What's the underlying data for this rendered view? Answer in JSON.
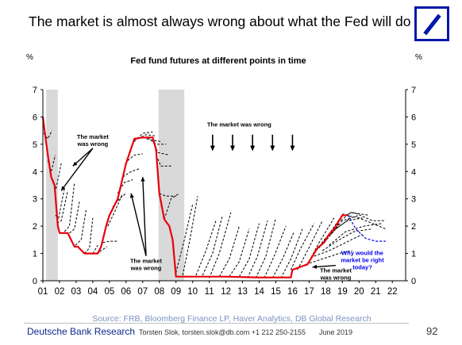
{
  "slide": {
    "title": "The market is almost always wrong about what the Fed will do",
    "footer_company": "Deutsche Bank Research",
    "footer_author": "Torsten Slok, torsten.slok@db.com  +1 212 250-2155",
    "footer_date": "June 2019",
    "page_number": "92",
    "brand_color": "#0018a8"
  },
  "chart_data": {
    "type": "line",
    "title": "Fed fund futures at different points in time",
    "y_unit_left": "%",
    "y_unit_right": "%",
    "ylim": [
      0,
      7
    ],
    "yticks": [
      "0",
      "1",
      "2",
      "3",
      "4",
      "5",
      "6",
      "7"
    ],
    "xlim": [
      2001,
      2022.8
    ],
    "xticks": [
      {
        "x": 2001,
        "label": "01"
      },
      {
        "x": 2002,
        "label": "02"
      },
      {
        "x": 2003,
        "label": "03"
      },
      {
        "x": 2004,
        "label": "04"
      },
      {
        "x": 2005,
        "label": "05"
      },
      {
        "x": 2006,
        "label": "06"
      },
      {
        "x": 2007,
        "label": "07"
      },
      {
        "x": 2008,
        "label": "08"
      },
      {
        "x": 2009,
        "label": "09"
      },
      {
        "x": 2010,
        "label": "10"
      },
      {
        "x": 2011,
        "label": "11"
      },
      {
        "x": 2012,
        "label": "12"
      },
      {
        "x": 2013,
        "label": "13"
      },
      {
        "x": 2014,
        "label": "14"
      },
      {
        "x": 2015,
        "label": "15"
      },
      {
        "x": 2016,
        "label": "16"
      },
      {
        "x": 2017,
        "label": "17"
      },
      {
        "x": 2018,
        "label": "18"
      },
      {
        "x": 2019,
        "label": "19"
      },
      {
        "x": 2020,
        "label": "20"
      },
      {
        "x": 2021,
        "label": "21"
      },
      {
        "x": 2022,
        "label": "22"
      }
    ],
    "source": "Source: FRB, Bloomberg Finance LP, Haver Analytics, DB Global Research",
    "recessions": [
      {
        "start": 2001.2,
        "end": 2001.9
      },
      {
        "start": 2007.95,
        "end": 2009.5
      }
    ],
    "colors": {
      "actual": "#e8000b",
      "futures": "#000000",
      "latest": "#0000ee",
      "recession": "#d9d9d9"
    },
    "actual": {
      "x": [
        2001.0,
        2001.1,
        2001.3,
        2001.5,
        2001.7,
        2001.9,
        2002.0,
        2002.5,
        2002.9,
        2003.1,
        2003.5,
        2003.9,
        2004.3,
        2004.5,
        2004.8,
        2005.0,
        2005.5,
        2006.0,
        2006.5,
        2007.0,
        2007.6,
        2007.8,
        2008.0,
        2008.3,
        2008.6,
        2008.8,
        2009.0,
        2010.0,
        2012.0,
        2014.0,
        2015.9,
        2016.0,
        2016.9,
        2017.3,
        2017.5,
        2017.9,
        2018.2,
        2018.5,
        2018.8,
        2019.0,
        2019.3
      ],
      "y": [
        6.0,
        5.5,
        4.6,
        3.8,
        3.5,
        2.0,
        1.75,
        1.75,
        1.25,
        1.25,
        1.0,
        1.0,
        1.0,
        1.25,
        2.0,
        2.4,
        3.0,
        4.3,
        5.2,
        5.25,
        5.25,
        4.8,
        3.2,
        2.25,
        2.0,
        1.5,
        0.15,
        0.15,
        0.15,
        0.12,
        0.12,
        0.4,
        0.6,
        1.0,
        1.2,
        1.4,
        1.7,
        1.9,
        2.2,
        2.4,
        2.4
      ]
    },
    "futures": [
      [
        [
          2001.05,
          5.4
        ],
        [
          2001.3,
          5.2
        ],
        [
          2001.55,
          5.5
        ]
      ],
      [
        [
          2001.3,
          4.4
        ],
        [
          2001.5,
          4.0
        ],
        [
          2001.75,
          4.6
        ]
      ],
      [
        [
          2001.6,
          3.7
        ],
        [
          2001.8,
          3.4
        ],
        [
          2002.1,
          4.3
        ]
      ],
      [
        [
          2001.75,
          2.4
        ],
        [
          2001.95,
          2.3
        ],
        [
          2002.3,
          3.4
        ]
      ],
      [
        [
          2001.85,
          2.1
        ],
        [
          2002.1,
          2.2
        ],
        [
          2002.5,
          3.3
        ]
      ],
      [
        [
          2002.3,
          1.8
        ],
        [
          2002.6,
          2.0
        ],
        [
          2002.9,
          3.6
        ]
      ],
      [
        [
          2002.6,
          1.75
        ],
        [
          2002.9,
          1.9
        ],
        [
          2003.2,
          2.9
        ]
      ],
      [
        [
          2002.95,
          1.3
        ],
        [
          2003.3,
          1.5
        ],
        [
          2003.6,
          2.6
        ]
      ],
      [
        [
          2003.5,
          1.0
        ],
        [
          2003.8,
          1.2
        ],
        [
          2004.0,
          2.3
        ]
      ],
      [
        [
          2003.75,
          1.0
        ],
        [
          2004.0,
          1.0
        ],
        [
          2004.3,
          1.3
        ]
      ],
      [
        [
          2004.2,
          1.0
        ],
        [
          2004.5,
          1.1
        ],
        [
          2004.85,
          1.25
        ]
      ],
      [
        [
          2004.6,
          1.4
        ],
        [
          2005.0,
          1.45
        ],
        [
          2005.5,
          1.45
        ]
      ],
      [
        [
          2004.9,
          2.0
        ],
        [
          2005.3,
          2.5
        ],
        [
          2005.8,
          3.2
        ]
      ],
      [
        [
          2005.2,
          2.7
        ],
        [
          2005.6,
          3.0
        ],
        [
          2006.0,
          3.2
        ]
      ],
      [
        [
          2005.5,
          3.2
        ],
        [
          2005.9,
          3.6
        ],
        [
          2006.4,
          3.7
        ]
      ],
      [
        [
          2005.8,
          3.8
        ],
        [
          2006.3,
          4.0
        ],
        [
          2006.8,
          4.1
        ]
      ],
      [
        [
          2006.1,
          4.4
        ],
        [
          2006.5,
          4.6
        ],
        [
          2007.0,
          4.65
        ]
      ],
      [
        [
          2006.5,
          5.1
        ],
        [
          2007.0,
          5.4
        ],
        [
          2007.6,
          5.45
        ]
      ],
      [
        [
          2006.7,
          5.2
        ],
        [
          2007.2,
          5.35
        ],
        [
          2007.8,
          5.3
        ]
      ],
      [
        [
          2007.0,
          5.25
        ],
        [
          2007.5,
          5.15
        ],
        [
          2008.1,
          5.1
        ]
      ],
      [
        [
          2007.3,
          5.25
        ],
        [
          2007.8,
          5.0
        ],
        [
          2008.4,
          5.0
        ]
      ],
      [
        [
          2007.6,
          5.25
        ],
        [
          2007.9,
          4.7
        ],
        [
          2008.6,
          4.6
        ]
      ],
      [
        [
          2007.8,
          4.6
        ],
        [
          2008.1,
          4.2
        ],
        [
          2008.8,
          4.2
        ]
      ],
      [
        [
          2008.0,
          3.2
        ],
        [
          2008.4,
          3.1
        ],
        [
          2009.0,
          3.1
        ]
      ],
      [
        [
          2008.3,
          2.25
        ],
        [
          2008.7,
          3.0
        ],
        [
          2009.2,
          3.2
        ]
      ],
      [
        [
          2009.0,
          0.3
        ],
        [
          2009.5,
          1.5
        ],
        [
          2010.0,
          2.8
        ]
      ],
      [
        [
          2009.4,
          0.2
        ],
        [
          2009.8,
          1.4
        ],
        [
          2010.3,
          3.1
        ]
      ],
      [
        [
          2010.2,
          0.2
        ],
        [
          2010.8,
          1.1
        ],
        [
          2011.4,
          2.2
        ]
      ],
      [
        [
          2010.6,
          0.2
        ],
        [
          2011.2,
          1.0
        ],
        [
          2011.8,
          2.4
        ]
      ],
      [
        [
          2011.0,
          0.1
        ],
        [
          2011.6,
          1.0
        ],
        [
          2012.3,
          2.5
        ]
      ],
      [
        [
          2011.6,
          0.15
        ],
        [
          2012.2,
          0.8
        ],
        [
          2012.8,
          2.0
        ]
      ],
      [
        [
          2012.2,
          0.15
        ],
        [
          2012.8,
          0.7
        ],
        [
          2013.4,
          1.9
        ]
      ],
      [
        [
          2012.8,
          0.15
        ],
        [
          2013.4,
          0.8
        ],
        [
          2014.0,
          2.1
        ]
      ],
      [
        [
          2013.3,
          0.1
        ],
        [
          2013.9,
          0.9
        ],
        [
          2014.5,
          2.2
        ]
      ],
      [
        [
          2013.8,
          0.1
        ],
        [
          2014.4,
          0.9
        ],
        [
          2015.0,
          2.3
        ]
      ],
      [
        [
          2014.3,
          0.1
        ],
        [
          2014.9,
          0.9
        ],
        [
          2015.6,
          2.0
        ]
      ],
      [
        [
          2014.8,
          0.1
        ],
        [
          2015.4,
          0.8
        ],
        [
          2016.1,
          1.8
        ]
      ],
      [
        [
          2015.3,
          0.1
        ],
        [
          2015.9,
          0.8
        ],
        [
          2016.6,
          1.9
        ]
      ],
      [
        [
          2015.9,
          0.4
        ],
        [
          2016.5,
          1.2
        ],
        [
          2017.3,
          2.1
        ]
      ],
      [
        [
          2016.3,
          0.4
        ],
        [
          2016.9,
          1.1
        ],
        [
          2017.8,
          2.2
        ]
      ],
      [
        [
          2016.9,
          0.6
        ],
        [
          2017.6,
          1.4
        ],
        [
          2018.5,
          2.3
        ]
      ],
      [
        [
          2017.2,
          0.9
        ],
        [
          2017.9,
          1.5
        ],
        [
          2018.8,
          2.1
        ]
      ],
      [
        [
          2017.6,
          1.2
        ],
        [
          2018.3,
          1.8
        ],
        [
          2019.1,
          2.5
        ]
      ],
      [
        [
          2017.9,
          1.4
        ],
        [
          2018.6,
          1.9
        ],
        [
          2019.5,
          2.3
        ]
      ],
      [
        [
          2018.3,
          1.7
        ],
        [
          2019.0,
          2.2
        ],
        [
          2020.0,
          2.4
        ]
      ],
      [
        [
          2018.6,
          1.9
        ],
        [
          2019.3,
          2.2
        ],
        [
          2020.2,
          2.3
        ]
      ],
      [
        [
          2018.9,
          2.2
        ],
        [
          2019.5,
          2.5
        ],
        [
          2020.6,
          2.4
        ]
      ],
      [
        [
          2019.1,
          2.4
        ],
        [
          2019.7,
          2.5
        ],
        [
          2020.8,
          2.2
        ],
        [
          2021.6,
          2.2
        ]
      ],
      [
        [
          2019.2,
          2.4
        ],
        [
          2020.0,
          2.3
        ],
        [
          2021.6,
          1.9
        ]
      ],
      [
        [
          2016.8,
          0.6
        ],
        [
          2017.8,
          0.8
        ],
        [
          2018.8,
          1.0
        ],
        [
          2019.6,
          1.1
        ]
      ],
      [
        [
          2017.3,
          0.9
        ],
        [
          2018.2,
          1.1
        ],
        [
          2019.2,
          1.4
        ],
        [
          2020.2,
          1.7
        ]
      ],
      [
        [
          2017.8,
          1.1
        ],
        [
          2018.8,
          1.5
        ],
        [
          2019.7,
          1.8
        ],
        [
          2020.8,
          1.9
        ]
      ],
      [
        [
          2018.2,
          1.3
        ],
        [
          2019.2,
          1.8
        ],
        [
          2020.3,
          2.0
        ],
        [
          2021.4,
          2.1
        ]
      ]
    ],
    "latest": [
      [
        2019.35,
        2.4
      ],
      [
        2019.8,
        1.9
      ],
      [
        2020.4,
        1.55
      ],
      [
        2021.0,
        1.45
      ],
      [
        2021.6,
        1.45
      ]
    ],
    "annotations": [
      {
        "text_lines": [
          "The market",
          "was wrong"
        ],
        "x": 2004.0,
        "y": 5.2,
        "arrows_to": [
          [
            2002.8,
            4.2
          ],
          [
            2002.1,
            3.3
          ]
        ]
      },
      {
        "text_lines": [
          "The market",
          "was wrong"
        ],
        "x": 2007.2,
        "y": 0.65,
        "arrows_to": [
          [
            2006.3,
            3.2
          ],
          [
            2007.0,
            3.8
          ]
        ]
      },
      {
        "text_lines": [
          "The market was wrong"
        ],
        "x": 2012.8,
        "y": 5.65,
        "arrows_to": []
      },
      {
        "text_lines": [
          "The market",
          "was wrong"
        ],
        "x": 2018.6,
        "y": 0.3,
        "arrows_to": [
          [
            2017.2,
            0.5
          ]
        ]
      },
      {
        "text_lines": [
          "Why would the",
          "market be right",
          "today?"
        ],
        "x": 2020.2,
        "y": 0.95,
        "arrows_to": [],
        "color": "#0000ee"
      }
    ],
    "down_arrows_x": [
      2011.2,
      2012.4,
      2013.6,
      2014.8,
      2016.0
    ]
  }
}
